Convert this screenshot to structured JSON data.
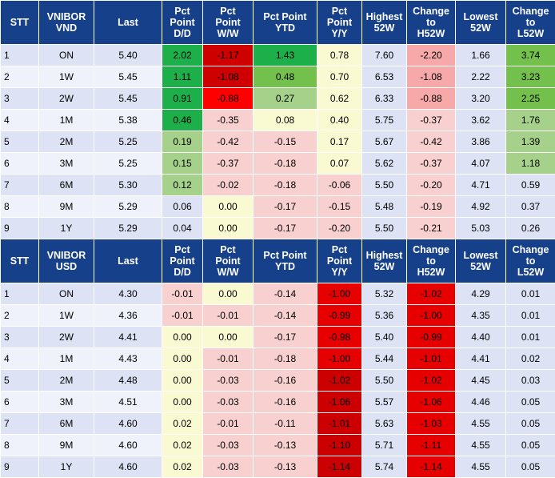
{
  "tables": [
    {
      "headers": [
        "STT",
        "VNIBOR\nVND",
        "Last",
        "Pct\nPoint\nD/D",
        "Pct\nPoint\nW/W",
        "Pct Point\nYTD",
        "Pct\nPoint\nY/Y",
        "Highest\n52W",
        "Change\nto\nH52W",
        "Lowest\n52W",
        "Change\nto\nL52W"
      ],
      "rows": [
        [
          "1",
          "ON",
          "5.40",
          "2.02",
          "-1.17",
          "1.43",
          "0.78",
          "7.60",
          "-2.20",
          "1.66",
          "3.74"
        ],
        [
          "2",
          "1W",
          "5.45",
          "1.11",
          "-1.08",
          "0.48",
          "0.70",
          "6.53",
          "-1.08",
          "2.22",
          "3.23"
        ],
        [
          "3",
          "2W",
          "5.45",
          "0.91",
          "-0.88",
          "0.27",
          "0.62",
          "6.33",
          "-0.88",
          "3.20",
          "2.25"
        ],
        [
          "4",
          "1M",
          "5.38",
          "0.46",
          "-0.35",
          "0.08",
          "0.40",
          "5.75",
          "-0.37",
          "3.62",
          "1.76"
        ],
        [
          "5",
          "2M",
          "5.25",
          "0.19",
          "-0.42",
          "-0.15",
          "0.17",
          "5.67",
          "-0.42",
          "3.86",
          "1.39"
        ],
        [
          "6",
          "3M",
          "5.25",
          "0.15",
          "-0.37",
          "-0.18",
          "0.07",
          "5.62",
          "-0.37",
          "4.07",
          "1.18"
        ],
        [
          "7",
          "6M",
          "5.30",
          "0.12",
          "-0.02",
          "-0.18",
          "-0.06",
          "5.50",
          "-0.20",
          "4.71",
          "0.59"
        ],
        [
          "8",
          "9M",
          "5.29",
          "0.06",
          "0.00",
          "-0.17",
          "-0.15",
          "5.48",
          "-0.19",
          "4.92",
          "0.37"
        ],
        [
          "9",
          "1Y",
          "5.29",
          "0.04",
          "0.00",
          "-0.17",
          "-0.20",
          "5.50",
          "-0.21",
          "5.03",
          "0.26"
        ]
      ],
      "colors": [
        [
          "",
          "",
          "",
          "#1daf4a",
          "#cf0000",
          "#1daf4a",
          "#fafad2",
          "#dde3f4",
          "#f7a9a9",
          "#dde3f4",
          "#74c04c"
        ],
        [
          "",
          "",
          "",
          "#1daf4a",
          "#cf0000",
          "#74c04c",
          "#fafad2",
          "#dde3f4",
          "#f7a9a9",
          "#dde3f4",
          "#74c04c"
        ],
        [
          "",
          "",
          "",
          "#1daf4a",
          "#ff0000",
          "#a6d18a",
          "#fafad2",
          "#dde3f4",
          "#f7a9a9",
          "#dde3f4",
          "#74c04c"
        ],
        [
          "",
          "",
          "",
          "#1daf4a",
          "#f9d0d0",
          "#fafad2",
          "#fafad2",
          "#dde3f4",
          "#f9d0d0",
          "#dde3f4",
          "#a6d18a"
        ],
        [
          "",
          "",
          "",
          "#a6d18a",
          "#f9d0d0",
          "#f9d0d0",
          "#fafad2",
          "#dde3f4",
          "#f9d0d0",
          "#dde3f4",
          "#a6d18a"
        ],
        [
          "",
          "",
          "",
          "#a6d18a",
          "#f9d0d0",
          "#f9d0d0",
          "#fafad2",
          "#dde3f4",
          "#f9d0d0",
          "#dde3f4",
          "#a6d18a"
        ],
        [
          "",
          "",
          "",
          "#a6d18a",
          "#f9d0d0",
          "#f9d0d0",
          "#f9d0d0",
          "#dde3f4",
          "#f9d0d0",
          "#dde3f4",
          "#dde3f4"
        ],
        [
          "",
          "",
          "",
          "#dde3f4",
          "#fafad2",
          "#f9d0d0",
          "#f9d0d0",
          "#dde3f4",
          "#f9d0d0",
          "#dde3f4",
          "#dde3f4"
        ],
        [
          "",
          "",
          "",
          "#dde3f4",
          "#fafad2",
          "#f9d0d0",
          "#f9d0d0",
          "#dde3f4",
          "#f9d0d0",
          "#dde3f4",
          "#dde3f4"
        ]
      ]
    },
    {
      "headers": [
        "STT",
        "VNIBOR\nUSD",
        "Last",
        "Pct\nPoint\nD/D",
        "Pct\nPoint\nW/W",
        "Pct Point\nYTD",
        "Pct\nPoint\nY/Y",
        "Highest\n52W",
        "Change\nto\nH52W",
        "Lowest\n52W",
        "Change\nto\nL52W"
      ],
      "rows": [
        [
          "1",
          "ON",
          "4.30",
          "-0.01",
          "0.00",
          "-0.14",
          "-1.00",
          "5.32",
          "-1.02",
          "4.29",
          "0.01"
        ],
        [
          "2",
          "1W",
          "4.36",
          "-0.01",
          "-0.01",
          "-0.14",
          "-0.99",
          "5.36",
          "-1.00",
          "4.35",
          "0.01"
        ],
        [
          "3",
          "2W",
          "4.41",
          "0.00",
          "0.00",
          "-0.17",
          "-0.98",
          "5.40",
          "-0.99",
          "4.40",
          "0.01"
        ],
        [
          "4",
          "1M",
          "4.43",
          "0.00",
          "-0.01",
          "-0.18",
          "-1.00",
          "5.44",
          "-1.01",
          "4.41",
          "0.02"
        ],
        [
          "5",
          "2M",
          "4.48",
          "0.00",
          "-0.03",
          "-0.16",
          "-1.02",
          "5.50",
          "-1.02",
          "4.45",
          "0.03"
        ],
        [
          "6",
          "3M",
          "4.51",
          "0.00",
          "-0.03",
          "-0.16",
          "-1.06",
          "5.57",
          "-1.06",
          "4.46",
          "0.05"
        ],
        [
          "7",
          "6M",
          "4.60",
          "0.02",
          "-0.01",
          "-0.11",
          "-1.01",
          "5.63",
          "-1.03",
          "4.55",
          "0.05"
        ],
        [
          "8",
          "9M",
          "4.60",
          "0.02",
          "-0.03",
          "-0.13",
          "-1.10",
          "5.71",
          "-1.11",
          "4.55",
          "0.05"
        ],
        [
          "9",
          "1Y",
          "4.60",
          "0.02",
          "-0.03",
          "-0.13",
          "-1.14",
          "5.74",
          "-1.14",
          "4.55",
          "0.05"
        ]
      ],
      "colors": [
        [
          "",
          "",
          "",
          "#f9d0d0",
          "#fafad2",
          "#f9d0d0",
          "#e60000",
          "#dde3f4",
          "#e60000",
          "#dde3f4",
          "#dde3f4"
        ],
        [
          "",
          "",
          "",
          "#f9d0d0",
          "#f9d0d0",
          "#f9d0d0",
          "#e60000",
          "#dde3f4",
          "#e60000",
          "#dde3f4",
          "#dde3f4"
        ],
        [
          "",
          "",
          "",
          "#fafad2",
          "#fafad2",
          "#f9d0d0",
          "#e60000",
          "#dde3f4",
          "#e60000",
          "#dde3f4",
          "#dde3f4"
        ],
        [
          "",
          "",
          "",
          "#fafad2",
          "#f9d0d0",
          "#f9d0d0",
          "#e60000",
          "#dde3f4",
          "#e60000",
          "#dde3f4",
          "#dde3f4"
        ],
        [
          "",
          "",
          "",
          "#fafad2",
          "#f9d0d0",
          "#f9d0d0",
          "#cc0000",
          "#dde3f4",
          "#e60000",
          "#dde3f4",
          "#dde3f4"
        ],
        [
          "",
          "",
          "",
          "#fafad2",
          "#f9d0d0",
          "#f9d0d0",
          "#cc0000",
          "#dde3f4",
          "#e60000",
          "#dde3f4",
          "#dde3f4"
        ],
        [
          "",
          "",
          "",
          "#fafad2",
          "#f9d0d0",
          "#f9d0d0",
          "#cc0000",
          "#dde3f4",
          "#e60000",
          "#dde3f4",
          "#dde3f4"
        ],
        [
          "",
          "",
          "",
          "#fafad2",
          "#f9d0d0",
          "#f9d0d0",
          "#cc0000",
          "#dde3f4",
          "#e60000",
          "#dde3f4",
          "#dde3f4"
        ],
        [
          "",
          "",
          "",
          "#fafad2",
          "#f9d0d0",
          "#f9d0d0",
          "#cc0000",
          "#dde3f4",
          "#e60000",
          "#dde3f4",
          "#dde3f4"
        ]
      ]
    }
  ]
}
